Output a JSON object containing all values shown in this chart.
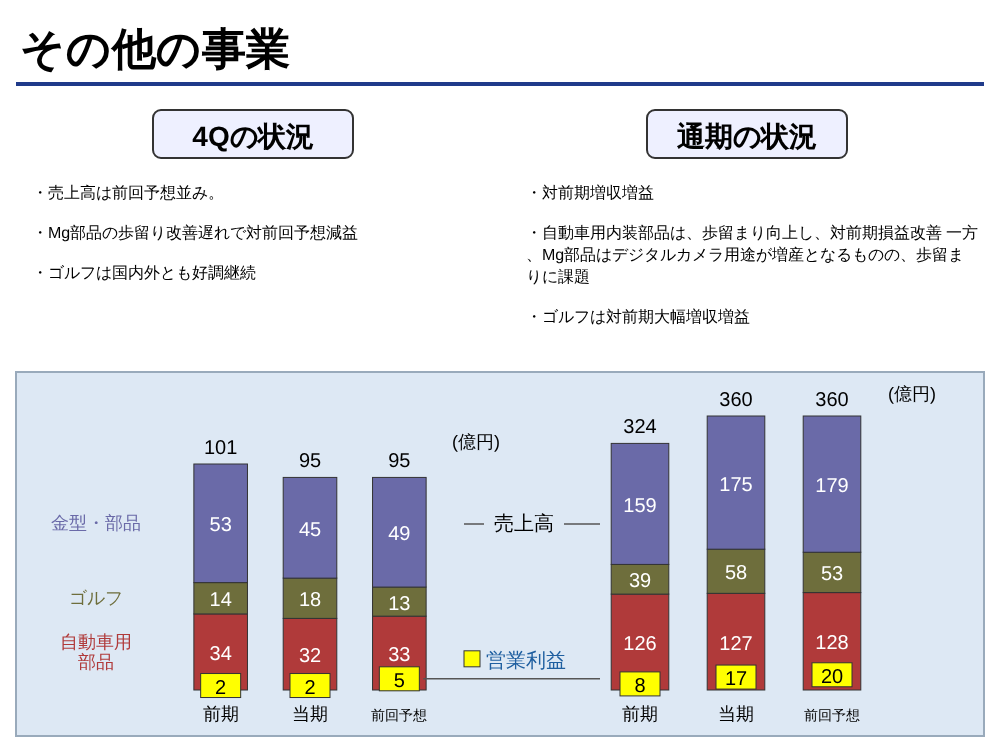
{
  "chart_data": [
    {
      "type": "other",
      "title": "その他の事業",
      "subtitle": "4Qの状況",
      "annotations": [
        "・売上高は前回予想並み。",
        "・Mg部品の歩留り改善遅れで対前回予想減益",
        "・ゴルフは国内外とも好調継続"
      ]
    },
    {
      "type": "other",
      "subtitle": "通期の状況",
      "annotations": [
        "・対前期増収増益",
        "・自動車用内装部品は、歩留まり向上し、対前期損益改善 一方、Mg部品はデジタルカメラ用途が増産となるものの、歩留まりに課題",
        "・ゴルフは対前期大幅増収増益"
      ]
    },
    {
      "type": "bar",
      "stacked": true,
      "data_labels": true,
      "categories": [
        "前期",
        "当期",
        "前回予想"
      ],
      "series": [
        {
          "name": "自動車用部品",
          "color": "#b03a3a",
          "values": [
            34,
            32,
            33
          ]
        },
        {
          "name": "ゴルフ",
          "color": "#6e6e3c",
          "values": [
            14,
            18,
            13
          ]
        },
        {
          "name": "金型・部品",
          "color": "#6a6aa8",
          "values": [
            53,
            45,
            49
          ]
        },
        {
          "name": "営業利益",
          "type": "scatter",
          "marker": "square",
          "color": "#ffff00",
          "values": [
            2,
            2,
            5
          ]
        }
      ],
      "totals": [
        "101",
        "95",
        "95"
      ],
      "annotations": [
        "(億円)",
        "売上高"
      ]
    },
    {
      "type": "bar",
      "stacked": true,
      "data_labels": true,
      "categories": [
        "前期",
        "当期",
        "前回予想"
      ],
      "series": [
        {
          "color": "#b03a3a",
          "values": [
            126,
            127,
            128
          ]
        },
        {
          "color": "#6e6e3c",
          "values": [
            39,
            58,
            53
          ]
        },
        {
          "color": "#6a6aa8",
          "values": [
            159,
            175,
            179
          ]
        },
        {
          "type": "scatter",
          "marker": "square",
          "color": "#ffff00",
          "values": [
            8,
            17,
            20
          ]
        }
      ],
      "totals": [
        "324",
        "360",
        "360"
      ],
      "annotations": [
        "(億円)"
      ]
    }
  ]
}
